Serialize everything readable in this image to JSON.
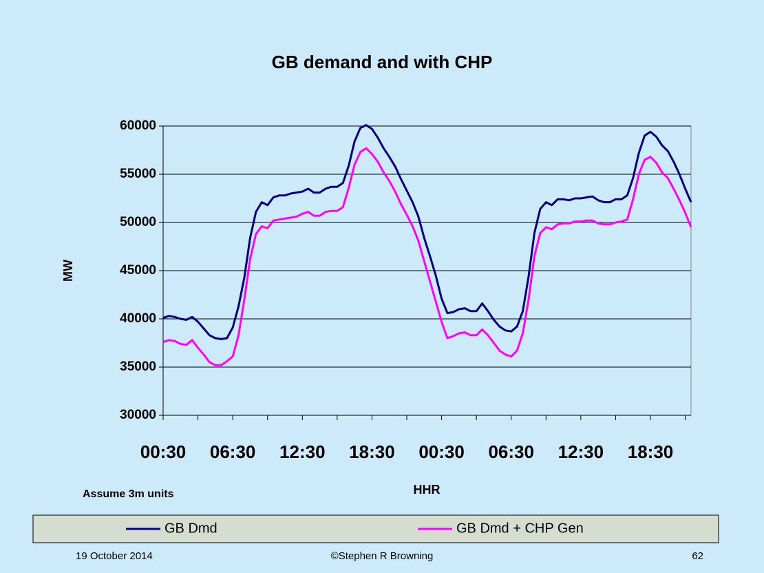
{
  "chart_data": {
    "type": "line",
    "title": "GB demand and with CHP",
    "y_label": "MW",
    "x_label": "HHR",
    "annotation": "Assume 3m units",
    "categories": [
      "00:30",
      null,
      null,
      null,
      null,
      null,
      null,
      null,
      null,
      null,
      null,
      null,
      "06:30",
      null,
      null,
      null,
      null,
      null,
      null,
      null,
      null,
      null,
      null,
      null,
      "12:30",
      null,
      null,
      null,
      null,
      null,
      null,
      null,
      null,
      null,
      null,
      null,
      "18:30",
      null,
      null,
      null,
      null,
      null,
      null,
      null,
      null,
      null,
      null,
      null,
      "00:30",
      null,
      null,
      null,
      null,
      null,
      null,
      null,
      null,
      null,
      null,
      null,
      "06:30",
      null,
      null,
      null,
      null,
      null,
      null,
      null,
      null,
      null,
      null,
      null,
      "12:30",
      null,
      null,
      null,
      null,
      null,
      null,
      null,
      null,
      null,
      null,
      null,
      "18:30",
      null,
      null,
      null,
      null,
      null,
      null,
      null
    ],
    "series": [
      {
        "name": "GB Dmd",
        "color": "#000080",
        "values": [
          40100,
          40300,
          40200,
          40000,
          39900,
          40200,
          39700,
          39000,
          38300,
          38000,
          37900,
          38000,
          39100,
          41300,
          44300,
          48400,
          51100,
          52100,
          51800,
          52600,
          52800,
          52800,
          53000,
          53100,
          53200,
          53500,
          53100,
          53100,
          53500,
          53700,
          53700,
          54100,
          55900,
          58400,
          59800,
          60100,
          59700,
          58800,
          57700,
          56800,
          55800,
          54500,
          53300,
          52100,
          50600,
          48400,
          46500,
          44500,
          42100,
          40600,
          40700,
          41000,
          41100,
          40800,
          40800,
          41600,
          40800,
          39900,
          39200,
          38800,
          38700,
          39200,
          40800,
          44400,
          48900,
          51400,
          52100,
          51800,
          52400,
          52400,
          52300,
          52500,
          52500,
          52600,
          52700,
          52300,
          52100,
          52100,
          52400,
          52400,
          52800,
          54600,
          57200,
          59000,
          59400,
          58900,
          58000,
          57400,
          56300,
          55000,
          53500,
          52100
        ]
      },
      {
        "name": "GB Dmd + CHP Gen",
        "color": "#ff00ff",
        "values": [
          37600,
          37800,
          37700,
          37400,
          37300,
          37800,
          37000,
          36300,
          35500,
          35200,
          35200,
          35600,
          36100,
          38300,
          42000,
          46200,
          48800,
          49600,
          49400,
          50200,
          50300,
          50400,
          50500,
          50600,
          50900,
          51100,
          50700,
          50700,
          51100,
          51200,
          51200,
          51600,
          53600,
          56000,
          57300,
          57700,
          57100,
          56300,
          55200,
          54300,
          53200,
          51900,
          50800,
          49600,
          48100,
          46000,
          43900,
          41800,
          39700,
          38000,
          38200,
          38500,
          38600,
          38300,
          38300,
          38900,
          38300,
          37500,
          36700,
          36300,
          36100,
          36700,
          38500,
          42000,
          46500,
          48900,
          49500,
          49300,
          49800,
          49900,
          49900,
          50100,
          50100,
          50200,
          50200,
          49900,
          49800,
          49800,
          50000,
          50100,
          50300,
          52400,
          55000,
          56500,
          56800,
          56200,
          55200,
          54600,
          53500,
          52300,
          51000,
          49500
        ]
      }
    ],
    "ylim": [
      30000,
      60000
    ],
    "yticks": [
      30000,
      35000,
      40000,
      45000,
      50000,
      55000,
      60000
    ],
    "grid": true,
    "legend": "bottom"
  },
  "footer": {
    "date": "19 October 2014",
    "author": "©Stephen R Browning",
    "page": "62"
  }
}
